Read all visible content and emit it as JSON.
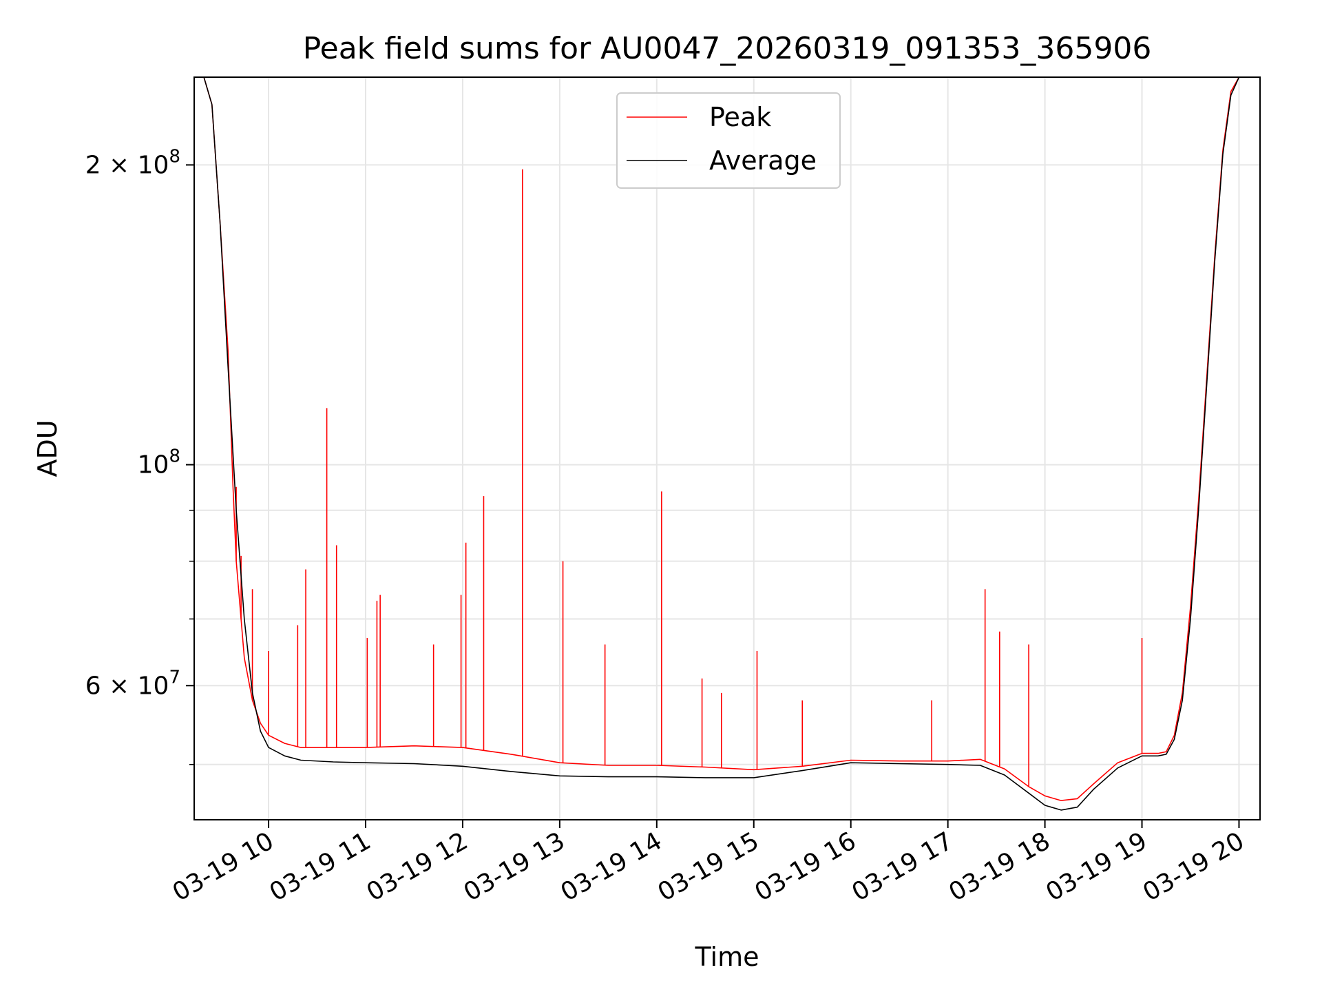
{
  "chart_data": {
    "type": "line",
    "title": "Peak field sums for AU0047_20260319_091353_365906",
    "xlabel": "Time",
    "ylabel": "ADU",
    "yscale": "log",
    "ylim": [
      44000000,
      245000000
    ],
    "xlim": [
      "2026-03-19 09:14",
      "2026-03-19 20:13"
    ],
    "grid": true,
    "legend_position": "top-center",
    "x_ticks": [
      "03-19 10",
      "03-19 11",
      "03-19 12",
      "03-19 13",
      "03-19 14",
      "03-19 15",
      "03-19 16",
      "03-19 17",
      "03-19 18",
      "03-19 19",
      "03-19 20"
    ],
    "y_tick_labels": [
      {
        "value": 200000000,
        "mantissa": "2",
        "exponent": "8"
      },
      {
        "value": 100000000,
        "mantissa": "",
        "exponent": "8"
      },
      {
        "value": 60000000,
        "mantissa": "6",
        "exponent": "7"
      }
    ],
    "y_minor_ticks": [
      50000000,
      70000000,
      80000000,
      90000000
    ],
    "series": [
      {
        "name": "Average",
        "color": "#000000",
        "x": [
          "2026-03-19 09:14",
          "2026-03-19 09:20",
          "2026-03-19 09:25",
          "2026-03-19 09:30",
          "2026-03-19 09:35",
          "2026-03-19 09:40",
          "2026-03-19 09:45",
          "2026-03-19 09:50",
          "2026-03-19 09:55",
          "2026-03-19 10:00",
          "2026-03-19 10:10",
          "2026-03-19 10:20",
          "2026-03-19 10:40",
          "2026-03-19 11:00",
          "2026-03-19 11:30",
          "2026-03-19 12:00",
          "2026-03-19 12:30",
          "2026-03-19 13:00",
          "2026-03-19 13:30",
          "2026-03-19 14:00",
          "2026-03-19 14:30",
          "2026-03-19 15:00",
          "2026-03-19 15:30",
          "2026-03-19 16:00",
          "2026-03-19 16:30",
          "2026-03-19 17:00",
          "2026-03-19 17:20",
          "2026-03-19 17:35",
          "2026-03-19 17:50",
          "2026-03-19 18:00",
          "2026-03-19 18:10",
          "2026-03-19 18:20",
          "2026-03-19 18:30",
          "2026-03-19 18:45",
          "2026-03-19 19:00",
          "2026-03-19 19:10",
          "2026-03-19 19:15",
          "2026-03-19 19:20",
          "2026-03-19 19:25",
          "2026-03-19 19:30",
          "2026-03-19 19:35",
          "2026-03-19 19:40",
          "2026-03-19 19:45",
          "2026-03-19 19:50",
          "2026-03-19 19:55",
          "2026-03-19 20:00",
          "2026-03-19 20:13"
        ],
        "y": [
          245000000,
          245000000,
          230000000,
          175000000,
          125000000,
          90000000,
          70000000,
          59000000,
          54000000,
          52000000,
          51000000,
          50500000,
          50300000,
          50200000,
          50100000,
          49800000,
          49200000,
          48700000,
          48600000,
          48600000,
          48500000,
          48500000,
          49300000,
          50200000,
          50100000,
          50000000,
          49900000,
          48800000,
          46800000,
          45500000,
          45000000,
          45300000,
          47200000,
          49600000,
          51000000,
          51000000,
          51200000,
          53000000,
          58000000,
          70000000,
          90000000,
          120000000,
          160000000,
          205000000,
          235000000,
          245000000,
          245000000
        ]
      },
      {
        "name": "Peak",
        "color": "#ff0000",
        "x": [
          "2026-03-19 09:14",
          "2026-03-19 09:20",
          "2026-03-19 09:25",
          "2026-03-19 09:30",
          "2026-03-19 09:35",
          "2026-03-19 09:38",
          "2026-03-19 09:40",
          "2026-03-19 09:45",
          "2026-03-19 09:50",
          "2026-03-19 09:55",
          "2026-03-19 10:00",
          "2026-03-19 10:10",
          "2026-03-19 10:20",
          "2026-03-19 10:40",
          "2026-03-19 11:00",
          "2026-03-19 11:30",
          "2026-03-19 12:00",
          "2026-03-19 12:30",
          "2026-03-19 13:00",
          "2026-03-19 13:30",
          "2026-03-19 14:00",
          "2026-03-19 14:30",
          "2026-03-19 15:00",
          "2026-03-19 15:30",
          "2026-03-19 16:00",
          "2026-03-19 16:30",
          "2026-03-19 17:00",
          "2026-03-19 17:20",
          "2026-03-19 17:35",
          "2026-03-19 17:50",
          "2026-03-19 18:00",
          "2026-03-19 18:10",
          "2026-03-19 18:20",
          "2026-03-19 18:30",
          "2026-03-19 18:45",
          "2026-03-19 19:00",
          "2026-03-19 19:10",
          "2026-03-19 19:15",
          "2026-03-19 19:20",
          "2026-03-19 19:25",
          "2026-03-19 19:30",
          "2026-03-19 19:35",
          "2026-03-19 19:40",
          "2026-03-19 19:45",
          "2026-03-19 19:50",
          "2026-03-19 19:55",
          "2026-03-19 20:00",
          "2026-03-19 20:13"
        ],
        "y": [
          245000000,
          245000000,
          230000000,
          175000000,
          130000000,
          95000000,
          80000000,
          64000000,
          58000000,
          55000000,
          53500000,
          52500000,
          52000000,
          52000000,
          52000000,
          52200000,
          52000000,
          51200000,
          50200000,
          49900000,
          49900000,
          49700000,
          49400000,
          49800000,
          50500000,
          50400000,
          50400000,
          50600000,
          49500000,
          47500000,
          46500000,
          46000000,
          46200000,
          47800000,
          50200000,
          51300000,
          51300000,
          51500000,
          53500000,
          59000000,
          72000000,
          92000000,
          122000000,
          162000000,
          207000000,
          237000000,
          245000000,
          245000000
        ],
        "spikes": [
          {
            "x": "2026-03-19 09:40",
            "y": 95000000
          },
          {
            "x": "2026-03-19 09:43",
            "y": 81000000
          },
          {
            "x": "2026-03-19 09:50",
            "y": 75000000
          },
          {
            "x": "2026-03-19 10:00",
            "y": 65000000
          },
          {
            "x": "2026-03-19 10:18",
            "y": 69000000
          },
          {
            "x": "2026-03-19 10:23",
            "y": 78500000
          },
          {
            "x": "2026-03-19 10:36",
            "y": 114000000
          },
          {
            "x": "2026-03-19 10:42",
            "y": 83000000
          },
          {
            "x": "2026-03-19 11:01",
            "y": 67000000
          },
          {
            "x": "2026-03-19 11:07",
            "y": 73000000
          },
          {
            "x": "2026-03-19 11:09",
            "y": 74000000
          },
          {
            "x": "2026-03-19 11:42",
            "y": 66000000
          },
          {
            "x": "2026-03-19 11:59",
            "y": 74000000
          },
          {
            "x": "2026-03-19 12:02",
            "y": 83500000
          },
          {
            "x": "2026-03-19 12:13",
            "y": 93000000
          },
          {
            "x": "2026-03-19 12:37",
            "y": 198000000
          },
          {
            "x": "2026-03-19 13:02",
            "y": 80000000
          },
          {
            "x": "2026-03-19 13:28",
            "y": 66000000
          },
          {
            "x": "2026-03-19 14:03",
            "y": 94000000
          },
          {
            "x": "2026-03-19 14:28",
            "y": 61000000
          },
          {
            "x": "2026-03-19 14:40",
            "y": 59000000
          },
          {
            "x": "2026-03-19 15:02",
            "y": 65000000
          },
          {
            "x": "2026-03-19 15:30",
            "y": 58000000
          },
          {
            "x": "2026-03-19 16:50",
            "y": 58000000
          },
          {
            "x": "2026-03-19 17:23",
            "y": 75000000
          },
          {
            "x": "2026-03-19 17:32",
            "y": 68000000
          },
          {
            "x": "2026-03-19 17:50",
            "y": 66000000
          },
          {
            "x": "2026-03-19 19:00",
            "y": 67000000
          }
        ]
      }
    ]
  }
}
